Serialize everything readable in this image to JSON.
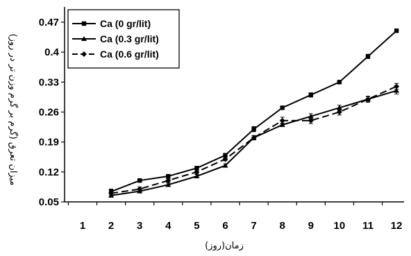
{
  "chart_data": {
    "type": "line",
    "title": "",
    "xlabel": "زمان(روز)",
    "ylabel": "میزان تعرق (گرم بر گرم وزن تر در روز)",
    "categories": [
      "1",
      "2",
      "3",
      "4",
      "5",
      "6",
      "7",
      "8",
      "9",
      "10",
      "11",
      "12"
    ],
    "x": [
      1,
      2,
      3,
      4,
      5,
      6,
      7,
      8,
      9,
      10,
      11,
      12
    ],
    "yticks": [
      "0.05",
      "0.12",
      "0.19",
      "0.26",
      "0.33",
      "0.4",
      "0.47"
    ],
    "ylim": [
      0.05,
      0.47
    ],
    "grid": false,
    "legend_position": "top-left",
    "series": [
      {
        "name": "Ca (0 gr/lit)",
        "marker": "square",
        "dash": "solid",
        "x": [
          2,
          3,
          4,
          5,
          6,
          7,
          8,
          9,
          10,
          11,
          12
        ],
        "values": [
          0.074,
          0.1,
          0.11,
          0.129,
          0.159,
          0.22,
          0.27,
          0.3,
          0.33,
          0.39,
          0.45
        ],
        "errors": [
          0.006,
          0.004,
          0.004,
          0.004,
          0.004,
          0.006,
          0.004,
          0.005,
          0.004,
          0.005,
          0.004
        ]
      },
      {
        "name": "Ca (0.3 gr/lit)",
        "marker": "triangle",
        "dash": "solid",
        "x": [
          2,
          3,
          4,
          5,
          6,
          7,
          8,
          9,
          10,
          11,
          12
        ],
        "values": [
          0.065,
          0.075,
          0.09,
          0.11,
          0.135,
          0.2,
          0.23,
          0.25,
          0.27,
          0.29,
          0.31
        ],
        "errors": [
          0.004,
          0.004,
          0.004,
          0.004,
          0.004,
          0.005,
          0.004,
          0.006,
          0.006,
          0.007,
          0.008
        ]
      },
      {
        "name": "Ca (0.6 gr/lit)",
        "marker": "diamond",
        "dash": "dashed",
        "x": [
          2,
          3,
          4,
          5,
          6,
          7,
          8,
          9,
          10,
          11,
          12
        ],
        "values": [
          0.07,
          0.08,
          0.1,
          0.12,
          0.15,
          0.2,
          0.24,
          0.24,
          0.26,
          0.29,
          0.32
        ],
        "errors": [
          0.005,
          0.005,
          0.004,
          0.004,
          0.004,
          0.005,
          0.008,
          0.007,
          0.007,
          0.006,
          0.007
        ]
      }
    ]
  }
}
